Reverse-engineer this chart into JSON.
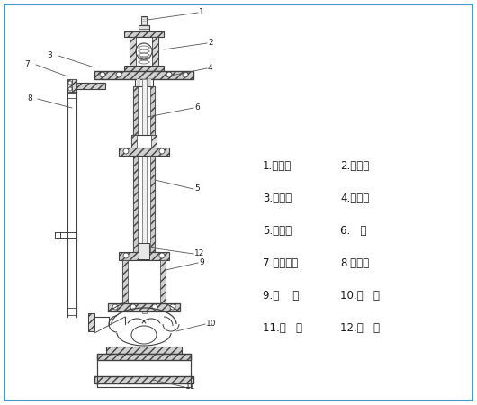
{
  "bg_color": "#ffffff",
  "border_color": "#4499cc",
  "line_color": "#404040",
  "gray_color": "#888888",
  "legend_items": [
    [
      "1.联轴器",
      "2.轴承盒"
    ],
    [
      "3.下支架",
      "4.安装盘"
    ],
    [
      "5.支撑管",
      "6.   轴"
    ],
    [
      "7.出口法兰",
      "8.出液管"
    ],
    [
      "9.泵    体",
      "10.叶   轮"
    ],
    [
      "11.泵   盖",
      "12.轴   套"
    ]
  ],
  "part_numbers": [
    "1",
    "2",
    "3",
    "4",
    "5",
    "6",
    "7",
    "8",
    "9",
    "10",
    "11",
    "12"
  ]
}
